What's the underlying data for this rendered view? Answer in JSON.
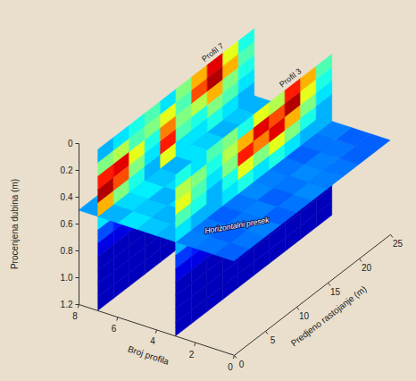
{
  "chart_data": {
    "type": "heatmap",
    "xlabel": "Predjeno rastojanje (m)",
    "ylabel": "Broj profila",
    "zlabel": "Procenjena dubina (m)",
    "xlim": [
      0,
      25
    ],
    "xticks": [
      0,
      5,
      10,
      15,
      20,
      25
    ],
    "ylim": [
      0,
      8
    ],
    "yticks": [
      0,
      2,
      4,
      6,
      8
    ],
    "zlim": [
      0,
      1.2
    ],
    "zticks": [
      0,
      0.2,
      0.4,
      0.6,
      0.8,
      {
        "value": 1,
        "label": "1.0"
      },
      1.2
    ],
    "clim": [
      0,
      1
    ],
    "distance_edges": [
      0,
      2.5,
      5,
      7.5,
      10,
      12.5,
      15,
      17.5,
      20,
      22.5,
      25
    ],
    "depth_edges": [
      0,
      0.1,
      0.2,
      0.3,
      0.4,
      0.5,
      0.6,
      0.7,
      0.8,
      0.9,
      1.0,
      1.1,
      1.2
    ],
    "profiles": [
      {
        "name": "Profil 7",
        "profile": 7,
        "values": [
          [
            0.3,
            0.35,
            0.4,
            0.45,
            0.35,
            0.5,
            0.7,
            0.9,
            0.6,
            0.4
          ],
          [
            0.5,
            0.55,
            0.45,
            0.5,
            0.6,
            0.45,
            0.8,
            0.95,
            0.7,
            0.45
          ],
          [
            0.85,
            0.9,
            0.6,
            0.4,
            0.75,
            0.5,
            0.55,
            0.7,
            0.5,
            0.4
          ],
          [
            0.95,
            0.8,
            0.5,
            0.35,
            0.85,
            0.45,
            0.4,
            0.5,
            0.45,
            0.35
          ],
          [
            0.7,
            0.5,
            0.4,
            0.3,
            0.6,
            0.35,
            0.35,
            0.4,
            0.35,
            0.3
          ],
          [
            0.35,
            0.3,
            0.3,
            0.25,
            0.3,
            0.3,
            0.25,
            0.3,
            0.3,
            0.25
          ],
          [
            0.2,
            0.15,
            0.18,
            0.15,
            0.2,
            0.15,
            0.15,
            0.18,
            0.15,
            0.15
          ],
          [
            0.1,
            0.1,
            0.12,
            0.1,
            0.1,
            0.1,
            0.12,
            0.1,
            0.1,
            0.1
          ],
          [
            0.06,
            0.06,
            0.06,
            0.06,
            0.06,
            0.06,
            0.06,
            0.06,
            0.06,
            0.06
          ],
          [
            0.06,
            0.06,
            0.06,
            0.06,
            0.06,
            0.06,
            0.06,
            0.06,
            0.06,
            0.06
          ],
          [
            0.06,
            0.06,
            0.06,
            0.06,
            0.06,
            0.06,
            0.06,
            0.06,
            0.06,
            0.06
          ],
          [
            0.06,
            0.06,
            0.06,
            0.06,
            0.06,
            0.06,
            0.06,
            0.06,
            0.06,
            0.06
          ]
        ]
      },
      {
        "name": "Profil 3",
        "profile": 3,
        "values": [
          [
            0.4,
            0.35,
            0.45,
            0.5,
            0.4,
            0.6,
            0.55,
            0.85,
            0.7,
            0.45
          ],
          [
            0.55,
            0.5,
            0.4,
            0.55,
            0.7,
            0.9,
            0.8,
            0.95,
            0.6,
            0.4
          ],
          [
            0.6,
            0.45,
            0.35,
            0.5,
            0.85,
            0.75,
            0.9,
            0.7,
            0.5,
            0.35
          ],
          [
            0.45,
            0.4,
            0.3,
            0.4,
            0.6,
            0.5,
            0.6,
            0.5,
            0.4,
            0.3
          ],
          [
            0.35,
            0.3,
            0.3,
            0.35,
            0.4,
            0.35,
            0.4,
            0.35,
            0.3,
            0.3
          ],
          [
            0.3,
            0.25,
            0.25,
            0.3,
            0.3,
            0.3,
            0.3,
            0.3,
            0.25,
            0.25
          ],
          [
            0.18,
            0.15,
            0.15,
            0.18,
            0.2,
            0.15,
            0.18,
            0.15,
            0.15,
            0.15
          ],
          [
            0.1,
            0.1,
            0.1,
            0.12,
            0.1,
            0.1,
            0.1,
            0.12,
            0.1,
            0.1
          ],
          [
            0.06,
            0.06,
            0.06,
            0.06,
            0.06,
            0.06,
            0.06,
            0.06,
            0.06,
            0.06
          ],
          [
            0.06,
            0.06,
            0.06,
            0.06,
            0.06,
            0.06,
            0.06,
            0.06,
            0.06,
            0.06
          ],
          [
            0.06,
            0.06,
            0.06,
            0.06,
            0.06,
            0.06,
            0.06,
            0.06,
            0.06,
            0.06
          ],
          [
            0.06,
            0.06,
            0.06,
            0.06,
            0.06,
            0.06,
            0.06,
            0.06,
            0.06,
            0.06
          ]
        ]
      }
    ],
    "slice": {
      "name": "Horizontalni presek",
      "depth": 0.5,
      "profile_edges": [
        0,
        1,
        2,
        3,
        4,
        5,
        6,
        7,
        8
      ],
      "values": [
        [
          0.22,
          0.24,
          0.25,
          0.22,
          0.24,
          0.26,
          0.25,
          0.24,
          0.22,
          0.22
        ],
        [
          0.24,
          0.22,
          0.24,
          0.25,
          0.22,
          0.24,
          0.26,
          0.25,
          0.24,
          0.22
        ],
        [
          0.25,
          0.24,
          0.22,
          0.24,
          0.26,
          0.25,
          0.24,
          0.22,
          0.24,
          0.25
        ],
        [
          0.3,
          0.32,
          0.28,
          0.3,
          0.35,
          0.3,
          0.32,
          0.3,
          0.28,
          0.3
        ],
        [
          0.32,
          0.3,
          0.34,
          0.36,
          0.3,
          0.32,
          0.3,
          0.34,
          0.3,
          0.28
        ],
        [
          0.35,
          0.32,
          0.3,
          0.34,
          0.38,
          0.33,
          0.3,
          0.32,
          0.34,
          0.3
        ],
        [
          0.3,
          0.34,
          0.36,
          0.32,
          0.3,
          0.35,
          0.33,
          0.3,
          0.32,
          0.3
        ],
        [
          0.28,
          0.3,
          0.32,
          0.3,
          0.28,
          0.3,
          0.32,
          0.3,
          0.28,
          0.28
        ]
      ]
    }
  }
}
